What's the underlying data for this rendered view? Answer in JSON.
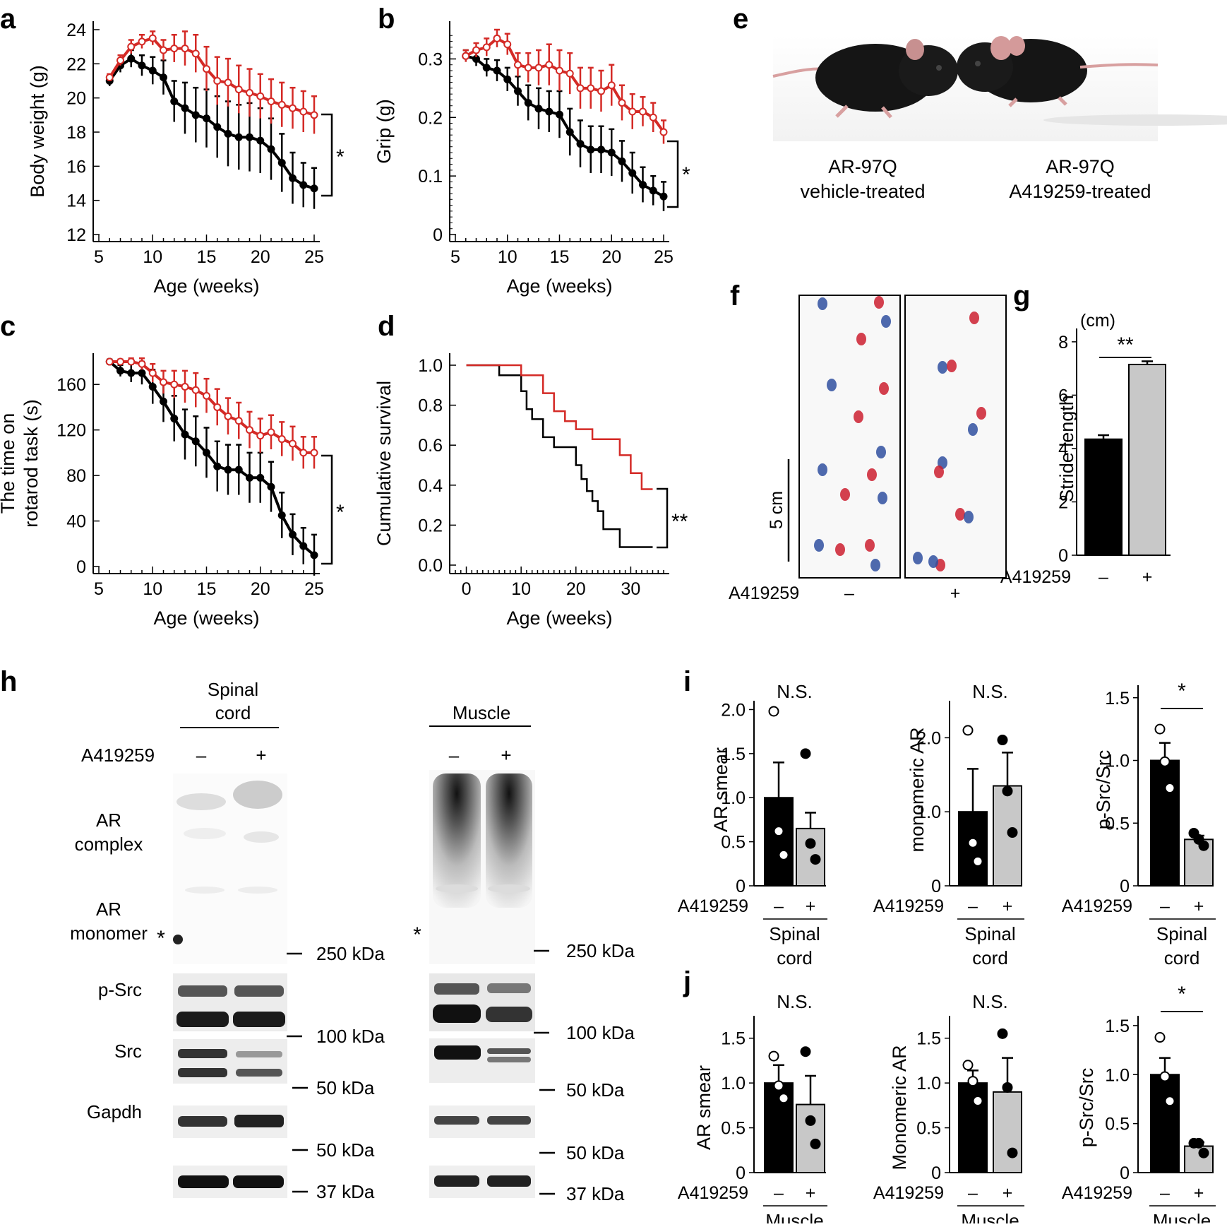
{
  "colors": {
    "control": "#000000",
    "treated": "#d42a26",
    "bar_control": "#000000",
    "bar_treated": "#c8c8c8",
    "paw_red": "#cc2030",
    "paw_blue": "#3050a0"
  },
  "panels": {
    "a": "a",
    "b": "b",
    "c": "c",
    "d": "d",
    "e": "e",
    "f": "f",
    "g": "g",
    "h": "h",
    "i": "i",
    "j": "j"
  },
  "significance": {
    "a": "*",
    "b": "*",
    "c": "*",
    "d": "**",
    "g": "**",
    "i_smear": "N.S.",
    "i_mono": "N.S.",
    "i_psrc": "*",
    "j_smear": "N.S.",
    "j_mono": "N.S.",
    "j_psrc": "*"
  },
  "panel_e": {
    "label_vehicle_1": "AR-97Q",
    "label_vehicle_2": "vehicle-treated",
    "label_treated_1": "AR-97Q",
    "label_treated_2": "A419259-treated"
  },
  "panel_f": {
    "scale_bar": "5 cm",
    "drug_label": "A419259",
    "minus": "–",
    "plus": "+"
  },
  "panel_h": {
    "sc_title_1": "Spinal",
    "sc_title_2": "cord",
    "muscle_title": "Muscle",
    "drug_label": "A419259",
    "minus": "–",
    "plus": "+",
    "row_ar_complex_1": "AR",
    "row_ar_complex_2": "complex",
    "row_ar_monomer_1": "AR",
    "row_ar_monomer_2": "monomer",
    "star": "*",
    "row_psrc": "p-Src",
    "row_src": "Src",
    "row_gapdh": "Gapdh",
    "mw_250": "250 kDa",
    "mw_100": "100 kDa",
    "mw_50": "50 kDa",
    "mw_37": "37 kDa"
  },
  "chart_data": [
    {
      "id": "a",
      "type": "line",
      "xlabel": "Age (weeks)",
      "ylabel": "Body weight (g)",
      "xlim": [
        5,
        25
      ],
      "ylim": [
        12,
        24
      ],
      "xticks": [
        5,
        10,
        15,
        20,
        25
      ],
      "yticks": [
        12,
        14,
        16,
        18,
        20,
        22,
        24
      ],
      "x": [
        6,
        7,
        8,
        9,
        10,
        11,
        12,
        13,
        14,
        15,
        16,
        17,
        18,
        19,
        20,
        21,
        22,
        23,
        24,
        25
      ],
      "series": [
        {
          "name": "vehicle",
          "color": "#000000",
          "marker": "filled",
          "values": [
            21.0,
            21.9,
            22.3,
            21.9,
            21.6,
            21.2,
            19.8,
            19.4,
            19.0,
            18.8,
            18.3,
            17.9,
            17.7,
            17.7,
            17.5,
            17.0,
            16.2,
            15.3,
            14.9,
            14.7
          ],
          "errors": [
            0.3,
            0.4,
            0.5,
            0.6,
            0.8,
            1.0,
            1.2,
            1.5,
            1.6,
            1.7,
            1.8,
            1.9,
            1.9,
            2.0,
            1.9,
            1.8,
            1.7,
            1.5,
            1.3,
            1.2
          ]
        },
        {
          "name": "A419259",
          "color": "#d42a26",
          "marker": "open",
          "values": [
            21.2,
            22.2,
            23.0,
            23.3,
            23.5,
            22.8,
            22.9,
            22.9,
            22.6,
            21.7,
            21.0,
            20.9,
            20.5,
            20.3,
            20.1,
            19.8,
            19.6,
            19.4,
            19.2,
            19.0
          ],
          "errors": [
            0.2,
            0.3,
            0.4,
            0.4,
            0.4,
            0.6,
            0.8,
            1.0,
            1.1,
            1.3,
            1.4,
            1.4,
            1.4,
            1.4,
            1.3,
            1.3,
            1.3,
            1.2,
            1.2,
            1.1
          ]
        }
      ]
    },
    {
      "id": "b",
      "type": "line",
      "xlabel": "Age (weeks)",
      "ylabel": "Grip (g)",
      "xlim": [
        5,
        25
      ],
      "ylim": [
        0,
        0.35
      ],
      "xticks": [
        5,
        10,
        15,
        20,
        25
      ],
      "yticks": [
        0,
        0.1,
        0.2,
        0.3
      ],
      "ytick_labels": [
        "0",
        "0.1",
        "0.2",
        "0.3"
      ],
      "x": [
        6,
        7,
        8,
        9,
        10,
        11,
        12,
        13,
        14,
        15,
        16,
        17,
        18,
        19,
        20,
        21,
        22,
        23,
        24,
        25
      ],
      "series": [
        {
          "name": "vehicle",
          "color": "#000000",
          "marker": "filled",
          "values": [
            0.305,
            0.3,
            0.285,
            0.28,
            0.265,
            0.245,
            0.225,
            0.215,
            0.21,
            0.205,
            0.175,
            0.155,
            0.145,
            0.145,
            0.14,
            0.125,
            0.105,
            0.085,
            0.075,
            0.065
          ],
          "errors": [
            0.01,
            0.012,
            0.015,
            0.018,
            0.02,
            0.025,
            0.03,
            0.035,
            0.035,
            0.04,
            0.04,
            0.04,
            0.04,
            0.04,
            0.04,
            0.035,
            0.035,
            0.03,
            0.025,
            0.025
          ]
        },
        {
          "name": "A419259",
          "color": "#d42a26",
          "marker": "open",
          "values": [
            0.305,
            0.315,
            0.32,
            0.335,
            0.325,
            0.29,
            0.285,
            0.285,
            0.29,
            0.28,
            0.275,
            0.25,
            0.25,
            0.245,
            0.255,
            0.225,
            0.21,
            0.21,
            0.2,
            0.175
          ],
          "errors": [
            0.01,
            0.012,
            0.015,
            0.015,
            0.018,
            0.02,
            0.025,
            0.03,
            0.035,
            0.035,
            0.035,
            0.035,
            0.035,
            0.035,
            0.035,
            0.03,
            0.03,
            0.025,
            0.025,
            0.02
          ]
        }
      ]
    },
    {
      "id": "c",
      "type": "line",
      "xlabel": "Age (weeks)",
      "ylabel": "The time on\nrotarod task (s)",
      "ylabel_lines": [
        "The time on",
        "rotarod task (s)"
      ],
      "xlim": [
        5,
        25
      ],
      "ylim": [
        0,
        180
      ],
      "xticks": [
        5,
        10,
        15,
        20,
        25
      ],
      "yticks": [
        0,
        40,
        80,
        120,
        160
      ],
      "x": [
        6,
        7,
        8,
        9,
        10,
        11,
        12,
        13,
        14,
        15,
        16,
        17,
        18,
        19,
        20,
        21,
        22,
        23,
        24,
        25
      ],
      "series": [
        {
          "name": "vehicle",
          "color": "#000000",
          "marker": "filled",
          "values": [
            180,
            172,
            170,
            170,
            158,
            145,
            130,
            116,
            110,
            100,
            88,
            85,
            85,
            78,
            78,
            70,
            45,
            28,
            18,
            10
          ],
          "errors": [
            2,
            5,
            8,
            10,
            15,
            18,
            20,
            22,
            22,
            22,
            22,
            22,
            22,
            22,
            22,
            22,
            20,
            18,
            16,
            18
          ]
        },
        {
          "name": "A419259",
          "color": "#d42a26",
          "marker": "open",
          "values": [
            180,
            180,
            180,
            178,
            170,
            162,
            160,
            158,
            155,
            150,
            140,
            132,
            128,
            120,
            115,
            118,
            112,
            108,
            100,
            100
          ],
          "errors": [
            1,
            2,
            3,
            5,
            8,
            10,
            12,
            14,
            15,
            15,
            16,
            16,
            16,
            16,
            15,
            15,
            15,
            15,
            14,
            14
          ]
        }
      ]
    },
    {
      "id": "d",
      "type": "line",
      "step": true,
      "xlabel": "Age (weeks)",
      "ylabel": "Cumulative survival",
      "xlim": [
        -2,
        36
      ],
      "ylim": [
        0,
        1.0
      ],
      "xticks": [
        0,
        10,
        20,
        30
      ],
      "yticks": [
        0.0,
        0.2,
        0.4,
        0.6,
        0.8,
        1.0
      ],
      "ytick_labels": [
        "0.0",
        "0.2",
        "0.4",
        "0.6",
        "0.8",
        "1.0"
      ],
      "series": [
        {
          "name": "vehicle",
          "color": "#000000",
          "x": [
            0,
            6,
            6,
            10,
            10,
            11,
            11,
            12,
            12,
            14,
            14,
            16,
            16,
            20,
            20,
            21,
            21,
            22,
            22,
            23,
            23,
            24,
            24,
            25,
            25,
            28,
            28,
            34
          ],
          "values": [
            1.0,
            1.0,
            0.95,
            0.95,
            0.87,
            0.87,
            0.78,
            0.78,
            0.73,
            0.73,
            0.64,
            0.64,
            0.59,
            0.59,
            0.5,
            0.5,
            0.43,
            0.43,
            0.37,
            0.37,
            0.32,
            0.32,
            0.27,
            0.27,
            0.18,
            0.18,
            0.09,
            0.09
          ]
        },
        {
          "name": "A419259",
          "color": "#d42a26",
          "x": [
            0,
            10,
            10,
            14,
            14,
            16,
            16,
            18,
            18,
            20,
            20,
            23,
            23,
            28,
            28,
            30,
            30,
            32,
            32,
            34
          ],
          "values": [
            1.0,
            1.0,
            0.95,
            0.95,
            0.86,
            0.86,
            0.77,
            0.77,
            0.72,
            0.72,
            0.68,
            0.68,
            0.63,
            0.63,
            0.55,
            0.55,
            0.46,
            0.46,
            0.38,
            0.38
          ]
        }
      ]
    },
    {
      "id": "g",
      "type": "bar",
      "ylabel": "Stride length",
      "unit": "(cm)",
      "group_label": "A419259",
      "categories": [
        "–",
        "+"
      ],
      "values": [
        4.35,
        7.15
      ],
      "errors": [
        0.15,
        0.12
      ],
      "ylim": [
        0,
        8.5
      ],
      "yticks": [
        0,
        2,
        4,
        6,
        8
      ]
    },
    {
      "id": "i1",
      "type": "bar",
      "ylabel": "AR smear",
      "group_label": "A419259",
      "tissue_1": "Spinal",
      "tissue_2": "cord",
      "categories": [
        "–",
        "+"
      ],
      "values": [
        1.0,
        0.65
      ],
      "errors": [
        0.4,
        0.18
      ],
      "points": [
        [
          1.98,
          0.62,
          0.35
        ],
        [
          1.5,
          0.48,
          0.3
        ]
      ],
      "ylim": [
        0,
        2.1
      ],
      "yticks": [
        0,
        0.5,
        1.0,
        1.5,
        2.0
      ],
      "ytick_labels": [
        "0",
        "0.5",
        "1.0",
        "1.5",
        "2.0"
      ]
    },
    {
      "id": "i2",
      "type": "bar",
      "ylabel": "monomeric AR",
      "group_label": "A419259",
      "tissue_1": "Spinal",
      "tissue_2": "cord",
      "categories": [
        "–",
        "+"
      ],
      "values": [
        1.0,
        1.35
      ],
      "errors": [
        0.58,
        0.45
      ],
      "points": [
        [
          2.1,
          0.58,
          0.33
        ],
        [
          1.97,
          1.28,
          0.72
        ]
      ],
      "ylim": [
        0,
        2.5
      ],
      "yticks": [
        0,
        1.0,
        2.0
      ],
      "ytick_labels": [
        "0",
        "1.0",
        "2.0"
      ]
    },
    {
      "id": "i3",
      "type": "bar",
      "ylabel": "p-Src/Src",
      "group_label": "A419259",
      "tissue_1": "Spinal",
      "tissue_2": "cord",
      "categories": [
        "–",
        "+"
      ],
      "values": [
        1.0,
        0.37
      ],
      "errors": [
        0.14,
        0.03
      ],
      "points": [
        [
          1.25,
          0.99,
          0.78
        ],
        [
          0.42,
          0.37,
          0.32
        ]
      ],
      "ylim": [
        0,
        1.6
      ],
      "yticks": [
        0,
        0.5,
        1.0,
        1.5
      ],
      "ytick_labels": [
        "0",
        "0.5",
        "1.0",
        "1.5"
      ]
    },
    {
      "id": "j1",
      "type": "bar",
      "ylabel": "AR smear",
      "group_label": "A419259",
      "tissue_1": "Muscle",
      "categories": [
        "–",
        "+"
      ],
      "values": [
        1.0,
        0.76
      ],
      "errors": [
        0.2,
        0.32
      ],
      "points": [
        [
          1.3,
          0.97,
          0.83
        ],
        [
          1.35,
          0.58,
          0.32
        ]
      ],
      "ylim": [
        0,
        1.75
      ],
      "yticks": [
        0,
        0.5,
        1.0,
        1.5
      ],
      "ytick_labels": [
        "0",
        "0.5",
        "1.0",
        "1.5"
      ]
    },
    {
      "id": "j2",
      "type": "bar",
      "ylabel": "Monomeric AR",
      "group_label": "A419259",
      "tissue_1": "Muscle",
      "categories": [
        "–",
        "+"
      ],
      "values": [
        1.0,
        0.9
      ],
      "errors": [
        0.14,
        0.38
      ],
      "points": [
        [
          1.2,
          1.02,
          0.8
        ],
        [
          1.55,
          0.95,
          0.22
        ]
      ],
      "ylim": [
        0,
        1.75
      ],
      "yticks": [
        0,
        0.5,
        1.0,
        1.5
      ],
      "ytick_labels": [
        "0",
        "0.5",
        "1.0",
        "1.5"
      ]
    },
    {
      "id": "j3",
      "type": "bar",
      "ylabel": "p-Src/Src",
      "group_label": "A419259",
      "tissue_1": "Muscle",
      "categories": [
        "–",
        "+"
      ],
      "values": [
        1.0,
        0.27
      ],
      "errors": [
        0.17,
        0.04
      ],
      "points": [
        [
          1.38,
          0.98,
          0.73
        ],
        [
          0.3,
          0.3,
          0.2
        ]
      ],
      "ylim": [
        0,
        1.6
      ],
      "yticks": [
        0,
        0.5,
        1.0,
        1.5
      ],
      "ytick_labels": [
        "0",
        "0.5",
        "1.0",
        "1.5"
      ]
    }
  ]
}
